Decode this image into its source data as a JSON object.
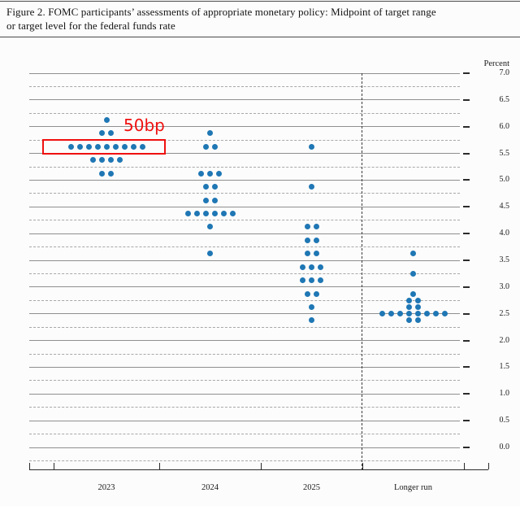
{
  "figure_caption": {
    "line1": "Figure 2.  FOMC participants’ assessments of appropriate monetary policy:  Midpoint of target range",
    "line2": "or target level for the federal funds rate"
  },
  "annotation": {
    "label": "50bp",
    "color": "#f01010",
    "highlighted_year": "2023",
    "highlighted_rate": 5.625
  },
  "chart_data": {
    "type": "scatter",
    "subtype": "fomc-dot-plot",
    "unit_label": "Percent",
    "ylim": [
      0.0,
      7.0
    ],
    "y_major_tick_step": 0.5,
    "y_tick_labels": [
      "7.0",
      "6.5",
      "6.0",
      "5.5",
      "5.0",
      "4.5",
      "4.0",
      "3.5",
      "3.0",
      "2.5",
      "2.0",
      "1.5",
      "1.0",
      "0.5",
      "0.0"
    ],
    "grid": "solid horizontal lines at 0.5 steps, dashed lines at 0.25 offsets",
    "legend_position": "none",
    "categories": [
      "2023",
      "2024",
      "2025",
      "Longer run"
    ],
    "separator_before_category": "Longer run",
    "dot_color": "#1f77b4",
    "series": [
      {
        "category": "2023",
        "dots": [
          {
            "rate": 6.125,
            "count": 1
          },
          {
            "rate": 5.875,
            "count": 2
          },
          {
            "rate": 5.625,
            "count": 9
          },
          {
            "rate": 5.375,
            "count": 4
          },
          {
            "rate": 5.125,
            "count": 2
          }
        ]
      },
      {
        "category": "2024",
        "dots": [
          {
            "rate": 5.875,
            "count": 1
          },
          {
            "rate": 5.625,
            "count": 2
          },
          {
            "rate": 5.125,
            "count": 3
          },
          {
            "rate": 4.875,
            "count": 2
          },
          {
            "rate": 4.625,
            "count": 2
          },
          {
            "rate": 4.375,
            "count": 6
          },
          {
            "rate": 4.125,
            "count": 1
          },
          {
            "rate": 3.625,
            "count": 1
          }
        ]
      },
      {
        "category": "2025",
        "dots": [
          {
            "rate": 5.625,
            "count": 1
          },
          {
            "rate": 4.875,
            "count": 1
          },
          {
            "rate": 4.125,
            "count": 2
          },
          {
            "rate": 3.875,
            "count": 2
          },
          {
            "rate": 3.625,
            "count": 2
          },
          {
            "rate": 3.375,
            "count": 3
          },
          {
            "rate": 3.125,
            "count": 3
          },
          {
            "rate": 2.875,
            "count": 2
          },
          {
            "rate": 2.625,
            "count": 1
          },
          {
            "rate": 2.375,
            "count": 1
          }
        ]
      },
      {
        "category": "Longer run",
        "dots": [
          {
            "rate": 3.625,
            "count": 1
          },
          {
            "rate": 3.25,
            "count": 1
          },
          {
            "rate": 2.875,
            "count": 1
          },
          {
            "rate": 2.75,
            "count": 2
          },
          {
            "rate": 2.625,
            "count": 2
          },
          {
            "rate": 2.5,
            "count": 8
          },
          {
            "rate": 2.375,
            "count": 2
          }
        ]
      }
    ]
  }
}
